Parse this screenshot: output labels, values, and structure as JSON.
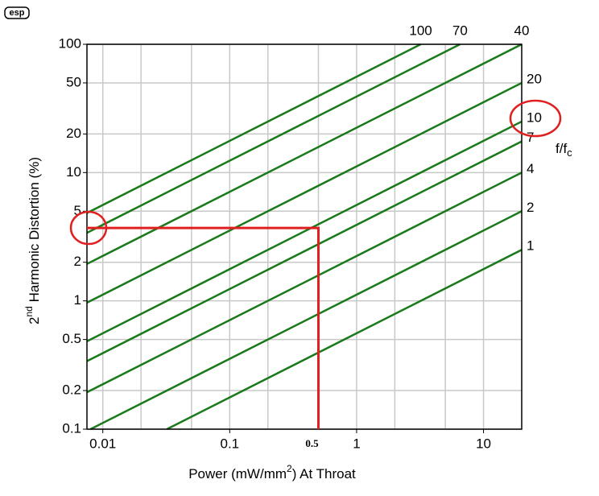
{
  "chart_data": {
    "type": "line",
    "logo": "esp",
    "ylabel_parts": [
      "2",
      "nd",
      " Harmonic Distortion (%)"
    ],
    "xlabel_parts": [
      "Power (mW/mm",
      "2",
      ") At Throat"
    ],
    "legend_title": "f/f",
    "legend_title_sub": "c",
    "log_x": true,
    "log_y": true,
    "xlim": [
      0.0075,
      20
    ],
    "ylim": [
      0.1,
      100
    ],
    "xticks": [
      0.01,
      0.1,
      1,
      10
    ],
    "xgrid": [
      0.02,
      0.05,
      0.2,
      0.5,
      2,
      5
    ],
    "yticks": [
      0.1,
      0.2,
      0.5,
      1,
      2,
      5,
      10,
      20,
      50,
      100
    ],
    "grid": true,
    "series": [
      {
        "name": "1",
        "color": "#1a7a1a",
        "x": [
          0.032,
          20
        ],
        "values": [
          0.1,
          2.5
        ]
      },
      {
        "name": "2",
        "color": "#1a7a1a",
        "x": [
          0.008,
          20
        ],
        "values": [
          0.1,
          5
        ]
      },
      {
        "name": "4",
        "color": "#1a7a1a",
        "x": [
          0.0075,
          20
        ],
        "values": [
          0.194,
          10
        ]
      },
      {
        "name": "7",
        "color": "#1a7a1a",
        "x": [
          0.0075,
          20
        ],
        "values": [
          0.339,
          17.5
        ]
      },
      {
        "name": "10",
        "color": "#1a7a1a",
        "x": [
          0.0075,
          20
        ],
        "values": [
          0.484,
          25
        ]
      },
      {
        "name": "20",
        "color": "#1a7a1a",
        "x": [
          0.0075,
          20
        ],
        "values": [
          0.968,
          50
        ]
      },
      {
        "name": "40",
        "color": "#1a7a1a",
        "x": [
          0.0075,
          20
        ],
        "values": [
          1.94,
          100
        ]
      },
      {
        "name": "70",
        "color": "#1a7a1a",
        "x": [
          0.0075,
          6.53
        ],
        "values": [
          3.39,
          100
        ]
      },
      {
        "name": "100",
        "color": "#1a7a1a",
        "x": [
          0.0075,
          3.2
        ],
        "values": [
          4.84,
          100
        ]
      }
    ],
    "annotation": {
      "x": 0.5,
      "y": 3.7,
      "label": "0.5",
      "color": "#e02020"
    }
  }
}
